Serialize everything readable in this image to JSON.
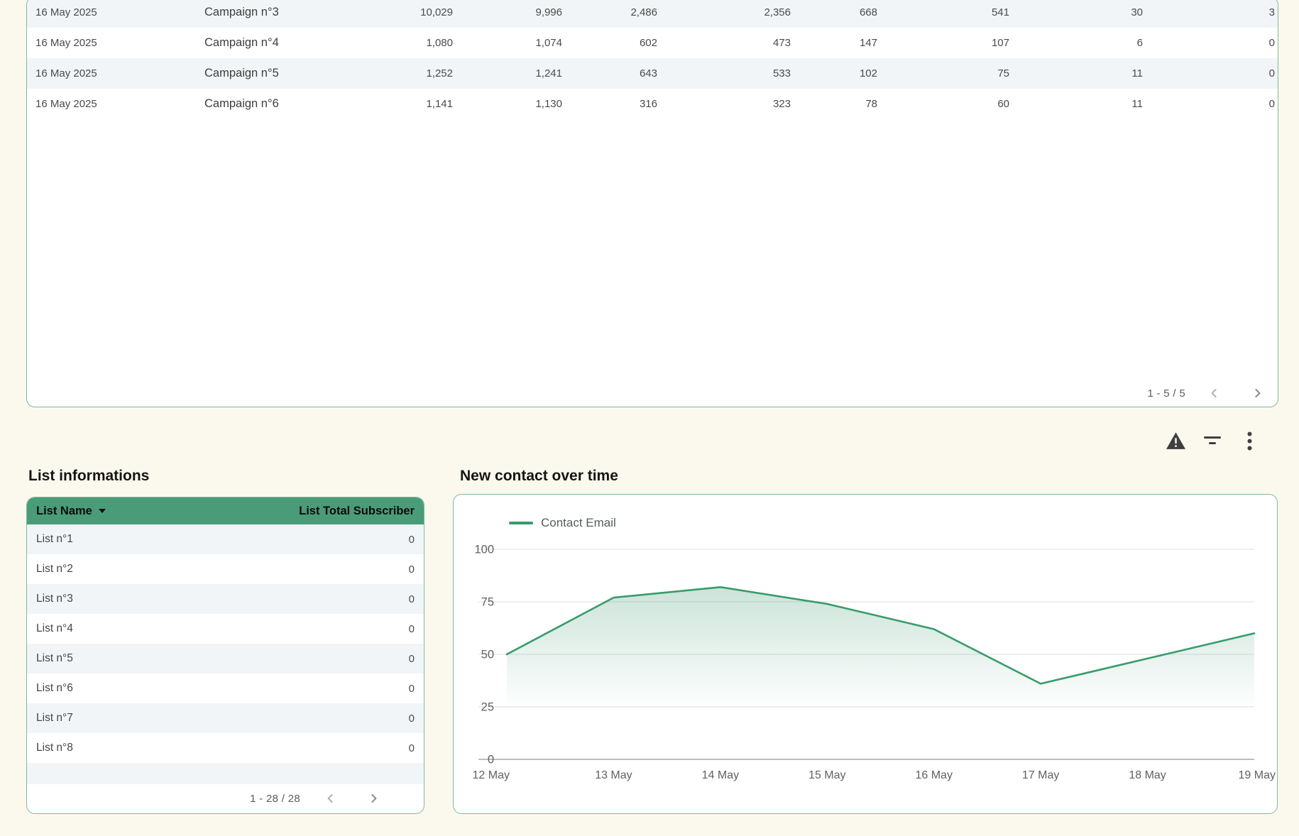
{
  "colors": {
    "background": "#fbf9ee",
    "card_border": "#7fba9a",
    "header_green": "#4a9c78",
    "line_green": "#389b6c",
    "stripe": "#f2f5f7"
  },
  "campaign_table": {
    "rows": [
      {
        "date": "16 May 2025",
        "name": "Campaign n°3",
        "values": [
          "10,029",
          "9,996",
          "2,486",
          "2,356",
          "668",
          "541",
          "30",
          "3"
        ]
      },
      {
        "date": "16 May 2025",
        "name": "Campaign n°4",
        "values": [
          "1,080",
          "1,074",
          "602",
          "473",
          "147",
          "107",
          "6",
          "0"
        ]
      },
      {
        "date": "16 May 2025",
        "name": "Campaign n°5",
        "values": [
          "1,252",
          "1,241",
          "643",
          "533",
          "102",
          "75",
          "11",
          "0"
        ]
      },
      {
        "date": "16 May 2025",
        "name": "Campaign n°6",
        "values": [
          "1,141",
          "1,130",
          "316",
          "323",
          "78",
          "60",
          "11",
          "0"
        ]
      }
    ],
    "pagination": "1 - 5 / 5"
  },
  "toolbar": {
    "icons": [
      "warning-icon",
      "filter-icon",
      "more-vertical-icon"
    ]
  },
  "pagination_icons": [
    "chevron-left-icon",
    "chevron-right-icon"
  ],
  "list_section": {
    "title": "List informations",
    "header": {
      "name_column": "List Name",
      "subscriber_column": "List Total Subscriber",
      "sort_icon": "sort-descending-caret"
    },
    "rows": [
      {
        "name": "List n°1",
        "value": "0"
      },
      {
        "name": "List n°2",
        "value": "0"
      },
      {
        "name": "List n°3",
        "value": "0"
      },
      {
        "name": "List n°4",
        "value": "0"
      },
      {
        "name": "List n°5",
        "value": "0"
      },
      {
        "name": "List n°6",
        "value": "0"
      },
      {
        "name": "List n°7",
        "value": "0"
      },
      {
        "name": "List n°8",
        "value": "0"
      }
    ],
    "pagination": "1 - 28 / 28"
  },
  "chart_section": {
    "title": "New contact over time",
    "legend": "Contact Email",
    "chart_data": {
      "type": "area",
      "x": [
        "12 May",
        "13 May",
        "14 May",
        "15 May",
        "16 May",
        "17 May",
        "18 May",
        "19 May"
      ],
      "series": [
        {
          "name": "Contact Email",
          "values": [
            50,
            77,
            82,
            74,
            62,
            36,
            48,
            60
          ]
        }
      ],
      "ylim": [
        0,
        100
      ],
      "yticks": [
        0,
        25,
        50,
        75,
        100
      ],
      "grid": true,
      "legend_position": "top-left",
      "line_color": "#389b6c"
    }
  }
}
